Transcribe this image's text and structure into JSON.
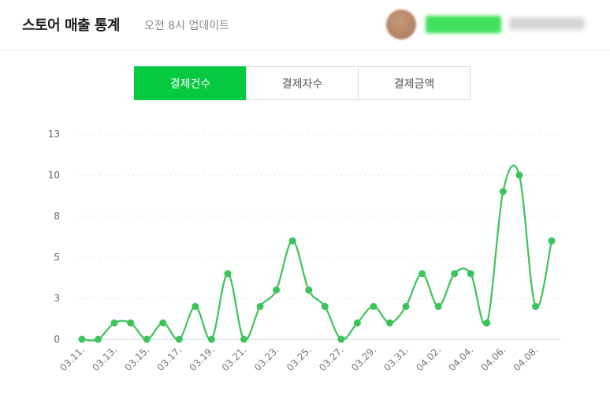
{
  "header": {
    "title": "스토어 매출 통계",
    "subtitle": "오전 8시 업데이트",
    "avatar_icon": "user-avatar-icon"
  },
  "tabs": [
    {
      "label": "결제건수",
      "active": true
    },
    {
      "label": "결제자수",
      "active": false
    },
    {
      "label": "결제금액",
      "active": false
    }
  ],
  "colors": {
    "accent": "#05c940",
    "line": "#3cc35a",
    "grid": "#e3e3e3"
  },
  "chart_data": {
    "type": "line",
    "x": [
      "03.11.",
      "03.12.",
      "03.13.",
      "03.14.",
      "03.15.",
      "03.16.",
      "03.17.",
      "03.18.",
      "03.19.",
      "03.20.",
      "03.21.",
      "03.22.",
      "03.23.",
      "03.24.",
      "03.25.",
      "03.26.",
      "03.27.",
      "03.28.",
      "03.29.",
      "03.30.",
      "03.31.",
      "04.01.",
      "04.02.",
      "04.03.",
      "04.04.",
      "04.05.",
      "04.06.",
      "04.07.",
      "04.08.",
      "04.09."
    ],
    "x_tick_labels": [
      "03.11.",
      "03.13.",
      "03.15.",
      "03.17.",
      "03.19.",
      "03.21.",
      "03.23.",
      "03.25.",
      "03.27.",
      "03.29.",
      "03.31.",
      "04.02.",
      "04.04.",
      "04.06.",
      "04.08."
    ],
    "values": [
      0,
      0,
      1,
      1,
      0,
      1,
      0,
      2,
      0,
      4,
      0,
      2,
      3,
      6,
      3,
      2,
      0,
      1,
      2,
      1,
      2,
      4,
      2,
      4,
      4,
      1,
      9,
      10,
      2,
      6
    ],
    "y_ticks": [
      "0",
      "3",
      "5",
      "8",
      "10",
      "13"
    ],
    "ylim": [
      0,
      12.5
    ],
    "grid": true,
    "legend": "none"
  }
}
